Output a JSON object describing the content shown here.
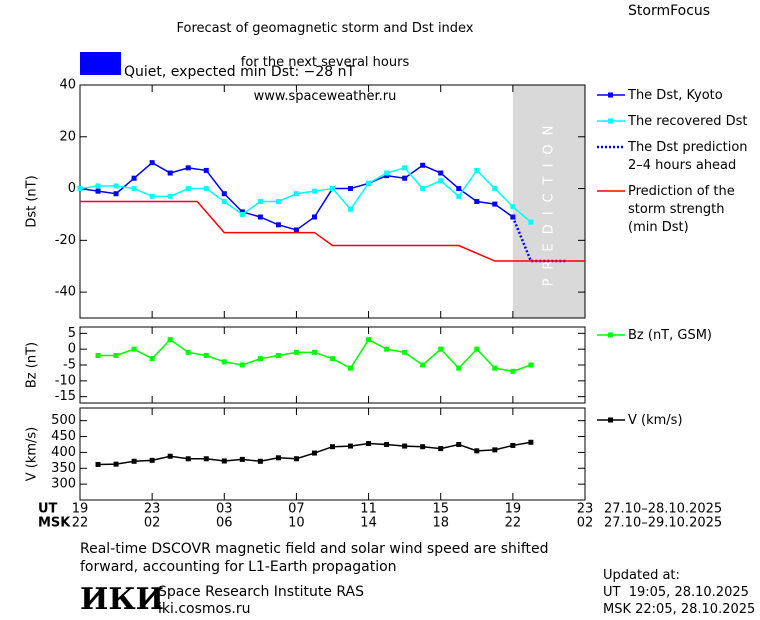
{
  "header": {
    "title_lines": [
      "Forecast of geomagnetic storm and Dst index",
      "for the next several hours",
      "www.spaceweather.ru"
    ],
    "brand": "StormFocus",
    "status": {
      "text": "Quiet, expected min Dst: −28 nT",
      "color": "#0000ff"
    }
  },
  "chart_data": [
    {
      "type": "line",
      "y_label": "Dst (nT)",
      "xlim": [
        0,
        28
      ],
      "ylim": [
        -50,
        40
      ],
      "yticks": [
        -40,
        -20,
        0,
        20,
        40
      ],
      "prediction_region": {
        "label": "PREDICTION",
        "x": [
          24,
          28
        ],
        "color": "#d9d9d9"
      },
      "series": [
        {
          "name": "The Dst, Kyoto",
          "color": "#0000ff",
          "marker": "square",
          "dash": "solid",
          "x": [
            0,
            1,
            2,
            3,
            4,
            5,
            6,
            7,
            8,
            9,
            10,
            11,
            12,
            13,
            14,
            15,
            16,
            17,
            18,
            19,
            20,
            21,
            22,
            23,
            24
          ],
          "values": [
            0,
            -1,
            -2,
            4,
            10,
            6,
            8,
            7,
            -2,
            -9,
            -11,
            -14,
            -16,
            -11,
            0,
            0,
            2,
            5,
            4,
            9,
            6,
            0,
            -5,
            -6,
            -11
          ]
        },
        {
          "name": "The recovered Dst",
          "color": "#00ffff",
          "marker": "square",
          "dash": "solid",
          "x": [
            0,
            1,
            2,
            3,
            4,
            5,
            6,
            7,
            8,
            9,
            10,
            11,
            12,
            13,
            14,
            15,
            16,
            17,
            18,
            19,
            20,
            21,
            22,
            23,
            24,
            25
          ],
          "values": [
            0,
            1,
            1,
            0,
            -3,
            -3,
            0,
            0,
            -5,
            -10,
            -5,
            -5,
            -2,
            -1,
            0,
            -8,
            2,
            6,
            8,
            0,
            3,
            -3,
            7,
            0,
            -7,
            -13
          ]
        },
        {
          "name": "The Dst prediction\n2–4 hours ahead",
          "color": "#0000ff",
          "marker": "none",
          "dash": "dotted",
          "x": [
            24,
            25,
            26,
            27
          ],
          "values": [
            -11,
            -28,
            -28,
            -28
          ]
        },
        {
          "name": "Prediction of the\nstorm strength\n(min Dst)",
          "color": "#ff0000",
          "marker": "none",
          "dash": "solid",
          "x": [
            0,
            6.5,
            8,
            13,
            14,
            21,
            23,
            28
          ],
          "values": [
            -5,
            -5,
            -17,
            -17,
            -22,
            -22,
            -28,
            -28
          ]
        }
      ]
    },
    {
      "type": "line",
      "y_label": "Bz (nT)",
      "xlim": [
        0,
        28
      ],
      "ylim": [
        -17,
        7
      ],
      "yticks": [
        -15,
        -10,
        -5,
        0,
        5
      ],
      "series": [
        {
          "name": "Bz (nT, GSM)",
          "color": "#00ff00",
          "marker": "square",
          "dash": "solid",
          "x": [
            1,
            2,
            3,
            4,
            5,
            6,
            7,
            8,
            9,
            10,
            11,
            12,
            13,
            14,
            15,
            16,
            17,
            18,
            19,
            20,
            21,
            22,
            23,
            24,
            25
          ],
          "values": [
            -2,
            -2,
            0,
            -3,
            3,
            -1,
            -2,
            -4,
            -5,
            -3,
            -2,
            -1,
            -1,
            -3,
            -6,
            3,
            0,
            -1,
            -5,
            0,
            -6,
            0,
            -6,
            -7,
            -5
          ]
        }
      ]
    },
    {
      "type": "line",
      "y_label": "V (km/s)",
      "xlim": [
        0,
        28
      ],
      "ylim": [
        250,
        540
      ],
      "yticks": [
        300,
        350,
        400,
        450,
        500
      ],
      "xticks": [
        {
          "value": 0,
          "label": "19"
        },
        {
          "value": 4,
          "label": "23"
        },
        {
          "value": 8,
          "label": "03"
        },
        {
          "value": 12,
          "label": "07"
        },
        {
          "value": 16,
          "label": "11"
        },
        {
          "value": 20,
          "label": "15"
        },
        {
          "value": 24,
          "label": "19"
        },
        {
          "value": 28,
          "label": "23"
        }
      ],
      "xticks_msk": [
        "22",
        "02",
        "06",
        "10",
        "14",
        "18",
        "22",
        "02"
      ],
      "x_label_ut": "UT",
      "x_label_msk": "MSK",
      "range_ut": "27.10–28.10.2025",
      "range_msk": "27.10–29.10.2025",
      "series": [
        {
          "name": "V (km/s)",
          "color": "#000000",
          "marker": "square",
          "dash": "solid",
          "x": [
            1,
            2,
            3,
            4,
            5,
            6,
            7,
            8,
            9,
            10,
            11,
            12,
            13,
            14,
            15,
            16,
            17,
            18,
            19,
            20,
            21,
            22,
            23,
            24,
            25
          ],
          "values": [
            362,
            363,
            372,
            375,
            388,
            380,
            380,
            373,
            378,
            372,
            383,
            380,
            398,
            418,
            420,
            428,
            425,
            420,
            418,
            412,
            425,
            405,
            408,
            422,
            432
          ]
        }
      ]
    }
  ],
  "footer": {
    "note": "Real-time DSCOVR magnetic field and solar wind speed are shifted forward, accounting for L1-Earth propagation",
    "logo": "ИКИ",
    "institute": "Space Research Institute RAS",
    "site": "iki.cosmos.ru",
    "updated_label": "Updated at:",
    "updated_ut": "UT  19:05, 28.10.2025",
    "updated_msk": "MSK 22:05, 28.10.2025"
  }
}
